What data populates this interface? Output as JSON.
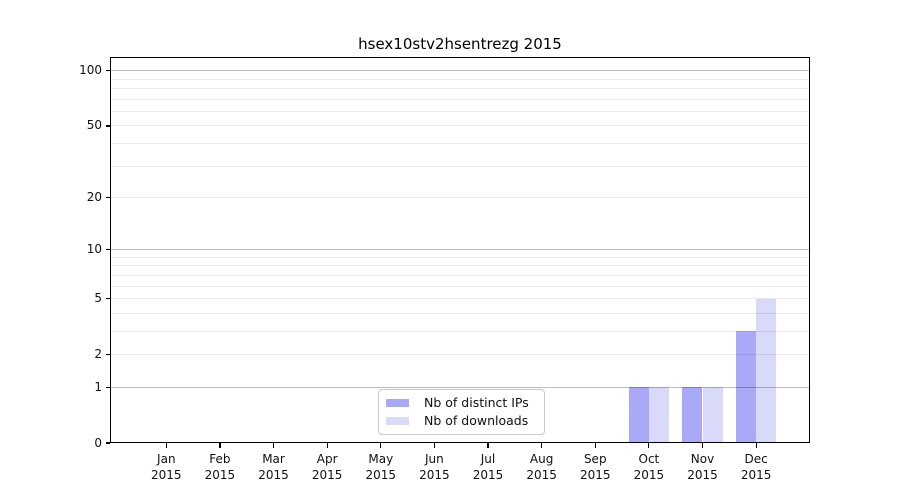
{
  "chart_data": {
    "type": "bar",
    "title": "hsex10stv2hsentrezg 2015",
    "year_label": "2015",
    "categories": [
      "Jan",
      "Feb",
      "Mar",
      "Apr",
      "May",
      "Jun",
      "Jul",
      "Aug",
      "Sep",
      "Oct",
      "Nov",
      "Dec"
    ],
    "series": [
      {
        "name": "Nb of distinct IPs",
        "color": "#a9a9f8",
        "values": [
          0,
          0,
          0,
          0,
          0,
          0,
          0,
          0,
          0,
          1,
          1,
          3
        ]
      },
      {
        "name": "Nb of downloads",
        "color": "#d9d9fa",
        "values": [
          0,
          0,
          0,
          0,
          0,
          0,
          0,
          0,
          0,
          1,
          1,
          5
        ]
      }
    ],
    "yscale": "log1p",
    "yticks": [
      0,
      1,
      2,
      5,
      10,
      20,
      50,
      100
    ],
    "ylim": [
      0,
      119
    ],
    "major_gridlines": [
      1,
      10,
      100
    ],
    "minor_gridlines": [
      2,
      3,
      4,
      5,
      6,
      7,
      8,
      9,
      20,
      30,
      40,
      50,
      60,
      70,
      80,
      90
    ],
    "grid": "on",
    "legend_position": "lower center-left inside plot",
    "colors": {
      "major_grid": "rgba(0,0,0,0.26)",
      "minor_grid": "rgba(0,0,0,0.085)",
      "axis": "#000000",
      "text": "#111111",
      "background": "#ffffff"
    }
  }
}
